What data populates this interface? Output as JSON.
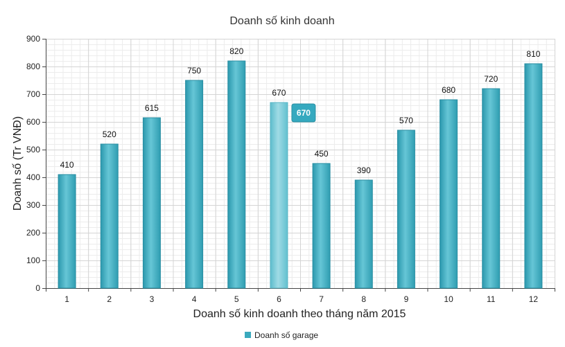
{
  "chart_data": {
    "type": "bar",
    "title": "Doanh số kinh doanh",
    "xlabel": "Doanh số kinh doanh theo tháng năm 2015",
    "ylabel": "Doanh số (Tr VNĐ)",
    "categories": [
      "1",
      "2",
      "3",
      "4",
      "5",
      "6",
      "7",
      "8",
      "9",
      "10",
      "11",
      "12"
    ],
    "series": [
      {
        "name": "Doanh số garage",
        "values": [
          410,
          520,
          615,
          750,
          820,
          670,
          450,
          390,
          570,
          680,
          720,
          810
        ]
      }
    ],
    "ylim": [
      0,
      900
    ],
    "yticks": [
      0,
      100,
      200,
      300,
      400,
      500,
      600,
      700,
      800,
      900
    ],
    "grid": true,
    "legend_position": "bottom-center",
    "bar_color": "#3aa9bd",
    "highlight": {
      "category": "6",
      "value": "670"
    }
  }
}
